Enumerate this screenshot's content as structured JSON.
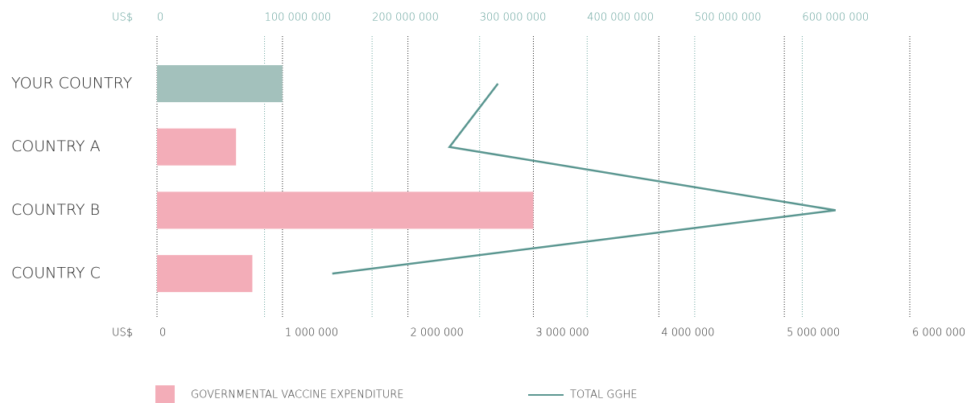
{
  "chart_data": {
    "type": "bar",
    "orientation": "horizontal",
    "categories": [
      "YOUR COUNTRY",
      "COUNTRY A",
      "COUNTRY B",
      "COUNTRY C"
    ],
    "series": [
      {
        "name": "GOVERNMENTAL VACCINE EXPENDITURE",
        "type": "bar",
        "color": "#f3adb8",
        "colors": [
          "#a3c1bc",
          "#f3adb8",
          "#f3adb8",
          "#f3adb8"
        ],
        "values": [
          1000000,
          630000,
          3000000,
          760000
        ]
      },
      {
        "name": "TOTAL GGHE",
        "type": "line",
        "axis": "x2",
        "color": "#5a9690",
        "values": [
          317000000,
          272000000,
          631000000,
          163000000
        ]
      }
    ],
    "xlabel": "US$",
    "x2label": "US$",
    "xlim": [
      0,
      6000000
    ],
    "xticks": [
      0,
      {
        "value": 1000000,
        "label": "1 000 000"
      },
      {
        "value": 2000000,
        "label": "2 000 000"
      },
      {
        "value": 3000000,
        "label": "3 000 000"
      },
      {
        "value": 4000000,
        "label": "4 000 000"
      },
      {
        "value": 5000000,
        "label": "5 000 000"
      },
      {
        "value": 6000000,
        "label": "6 000 000"
      }
    ],
    "x2lim": [
      0,
      700000000
    ],
    "x2ticks": [
      0,
      {
        "value": 100000000,
        "label": "100 000 000"
      },
      {
        "value": 200000000,
        "label": "200 000 000"
      },
      {
        "value": 300000000,
        "label": "300 000 000"
      },
      {
        "value": 400000000,
        "label": "400 000 000"
      },
      {
        "value": 500000000,
        "label": "500 000 000"
      },
      {
        "value": 600000000,
        "label": "600 000 000"
      }
    ],
    "grid": true
  }
}
